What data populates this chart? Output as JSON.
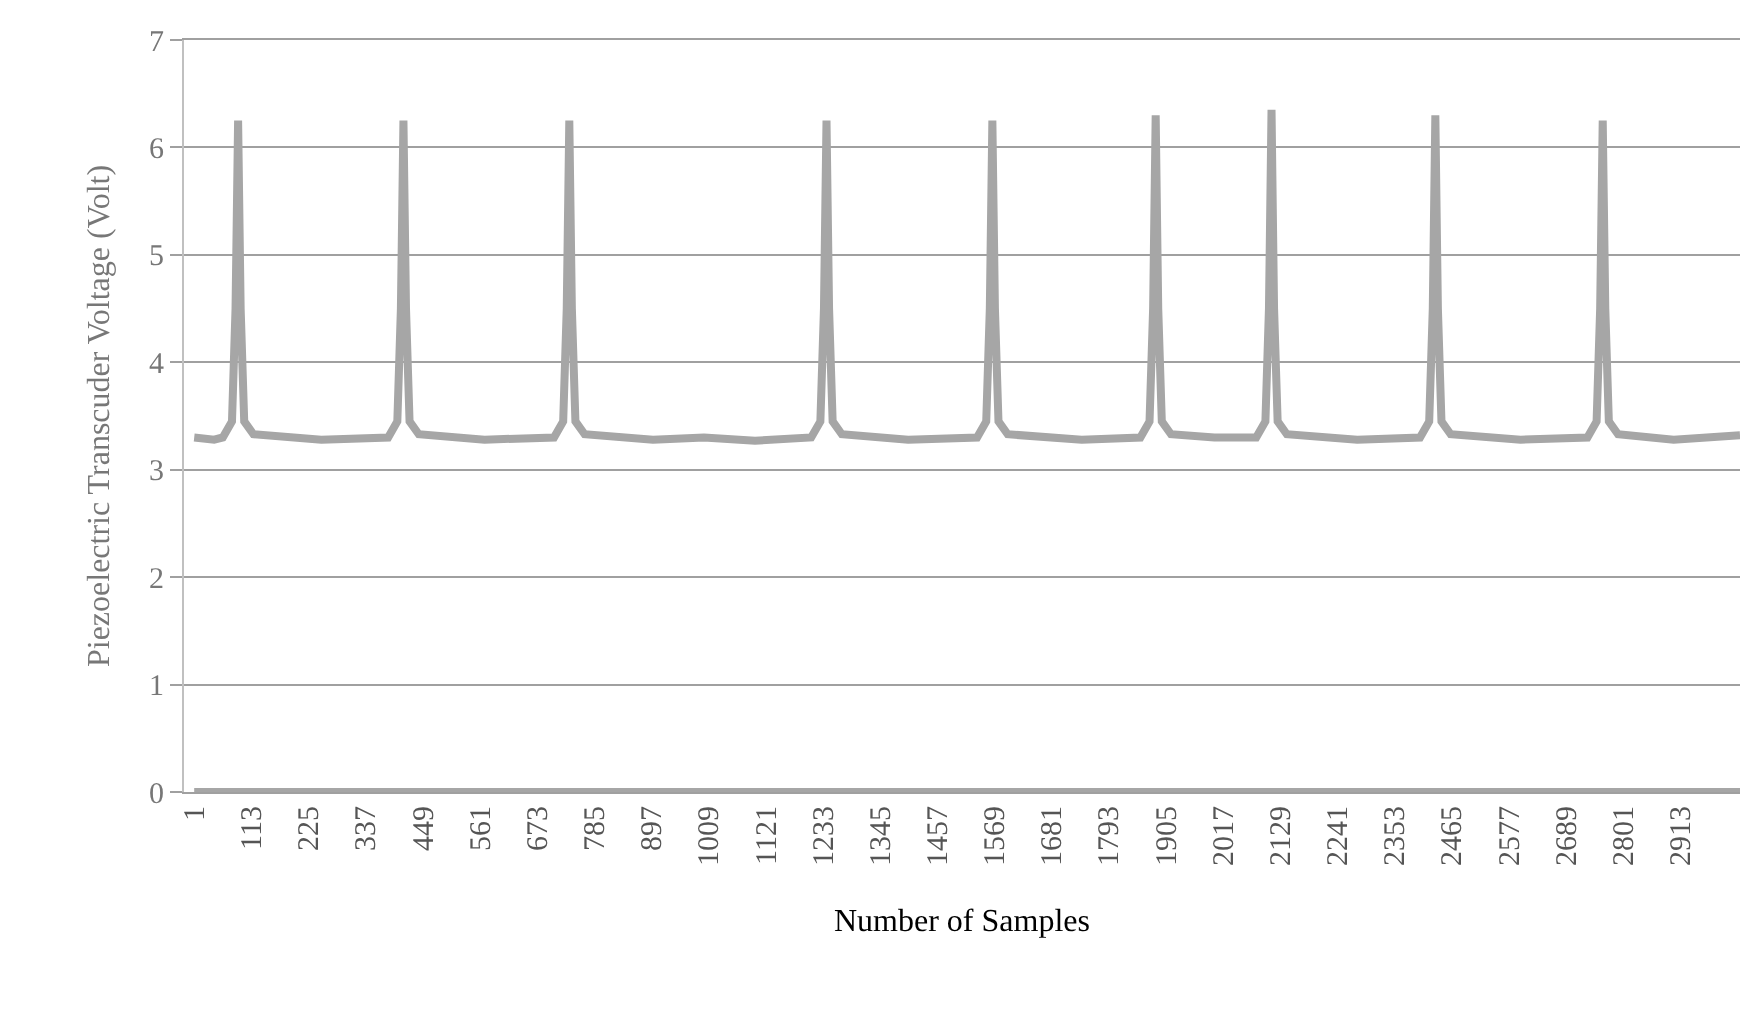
{
  "chart_data": {
    "type": "line",
    "xlabel": "Number of Samples",
    "ylabel": "Piezoelectric Transcuder Voltage (Volt)",
    "xlim": [
      -19,
      3030
    ],
    "xticks": [
      1,
      113,
      225,
      337,
      449,
      561,
      673,
      785,
      897,
      1009,
      1121,
      1233,
      1345,
      1457,
      1569,
      1681,
      1793,
      1905,
      2017,
      2129,
      2241,
      2353,
      2465,
      2577,
      2689,
      2801,
      2913
    ],
    "ylim": [
      0,
      7
    ],
    "yticks": [
      0,
      1,
      2,
      3,
      4,
      5,
      6,
      7
    ],
    "grid": "y",
    "marker": "none",
    "line_style": "solid",
    "series": [
      {
        "color": "#a6a6a6",
        "x": [
          1,
          40,
          57,
          75,
          82,
          87,
          92,
          99,
          117,
          250,
          381,
          399,
          406,
          411,
          416,
          423,
          441,
          570,
          706,
          724,
          731,
          736,
          741,
          748,
          766,
          900,
          1000,
          1100,
          1210,
          1228,
          1235,
          1240,
          1245,
          1252,
          1270,
          1400,
          1535,
          1553,
          1560,
          1565,
          1570,
          1577,
          1595,
          1740,
          1855,
          1873,
          1880,
          1885,
          1890,
          1897,
          1915,
          2000,
          2082,
          2100,
          2107,
          2112,
          2117,
          2124,
          2142,
          2280,
          2403,
          2421,
          2428,
          2433,
          2438,
          2445,
          2463,
          2600,
          2731,
          2749,
          2756,
          2761,
          2766,
          2773,
          2791,
          2900,
          3030
        ],
        "values": [
          3.3,
          3.28,
          3.3,
          3.45,
          4.5,
          6.25,
          4.5,
          3.45,
          3.33,
          3.28,
          3.3,
          3.45,
          4.5,
          6.25,
          4.5,
          3.45,
          3.33,
          3.28,
          3.3,
          3.45,
          4.5,
          6.25,
          4.5,
          3.45,
          3.33,
          3.28,
          3.3,
          3.27,
          3.3,
          3.45,
          4.5,
          6.25,
          4.5,
          3.45,
          3.33,
          3.28,
          3.3,
          3.45,
          4.5,
          6.25,
          4.5,
          3.45,
          3.33,
          3.28,
          3.3,
          3.45,
          4.5,
          6.3,
          4.5,
          3.45,
          3.33,
          3.3,
          3.3,
          3.45,
          4.5,
          6.35,
          4.5,
          3.45,
          3.33,
          3.28,
          3.3,
          3.45,
          4.5,
          6.3,
          4.5,
          3.45,
          3.33,
          3.28,
          3.3,
          3.45,
          4.5,
          6.25,
          4.5,
          3.45,
          3.33,
          3.28,
          3.32
        ]
      },
      {
        "color": "#a6a6a6",
        "x": [
          1,
          3030
        ],
        "values": [
          0,
          0
        ]
      }
    ]
  }
}
